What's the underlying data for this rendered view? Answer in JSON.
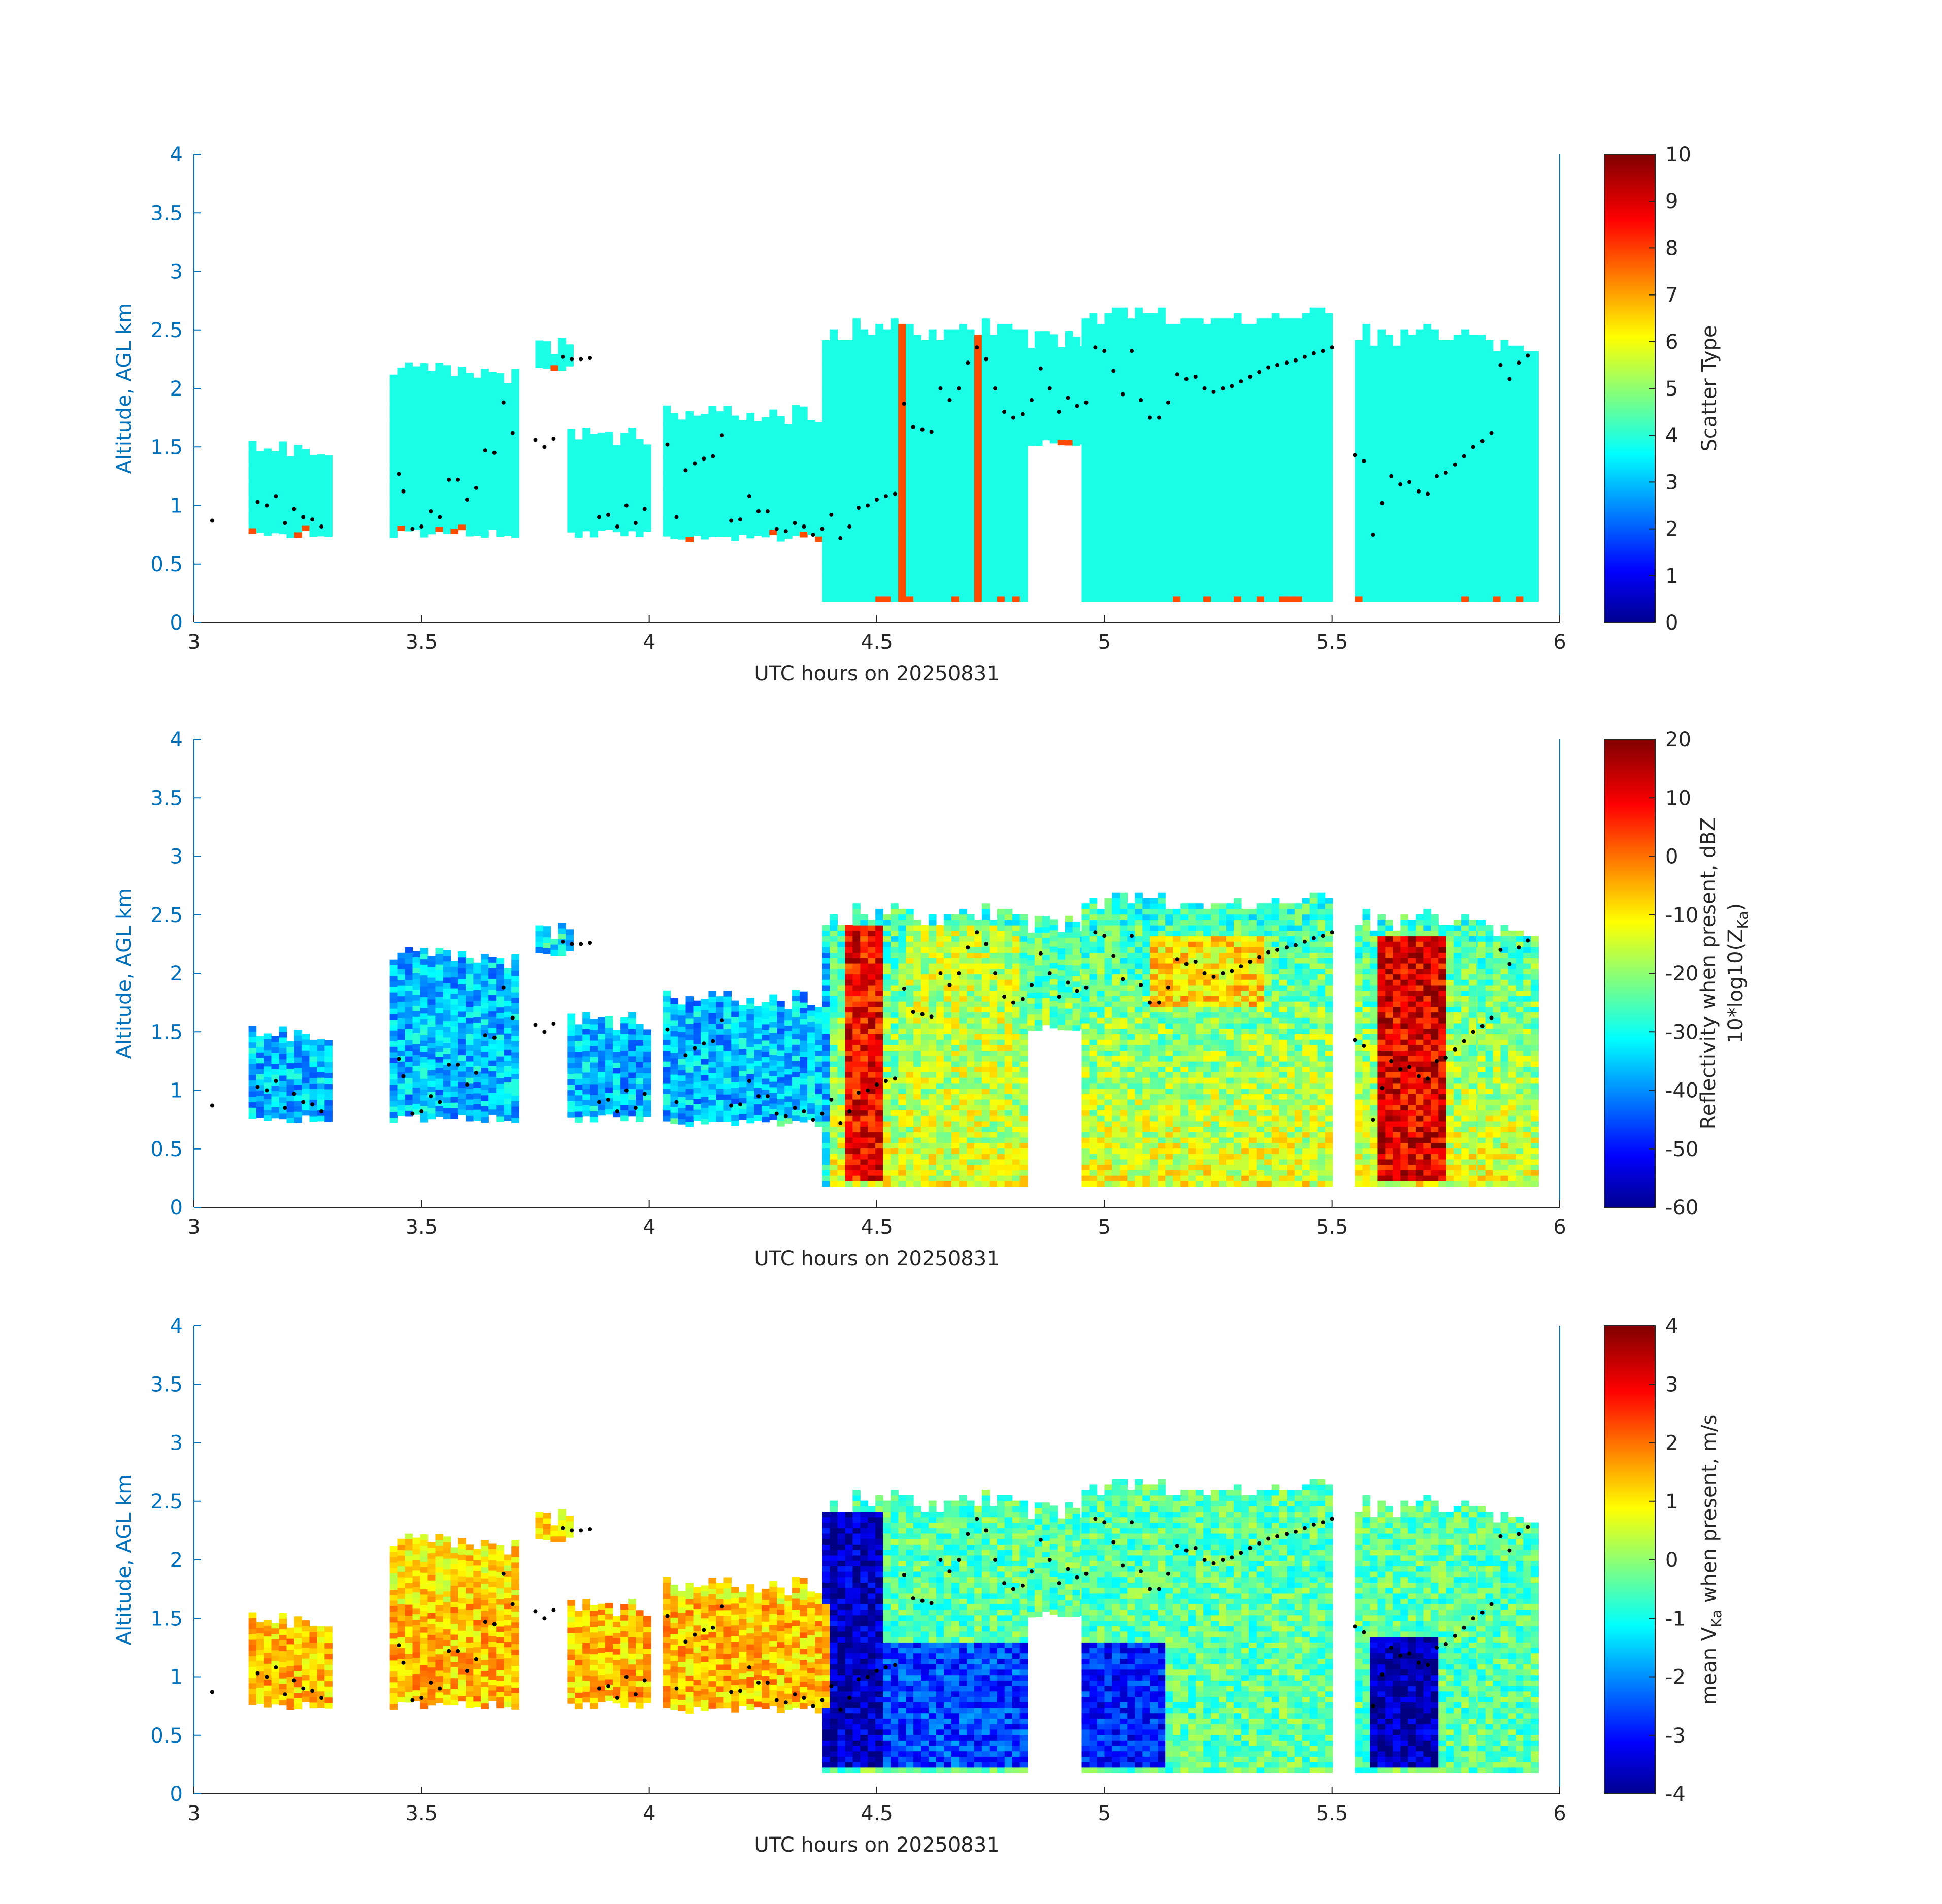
{
  "x_axis": {
    "label": "UTC hours on 20250831",
    "range": [
      3,
      6
    ],
    "ticks": [
      "3",
      "3.5",
      "4",
      "4.5",
      "5",
      "5.5",
      "6"
    ]
  },
  "y_axis": {
    "label": "Altitude, AGL km",
    "range": [
      0,
      4
    ],
    "ticks": [
      "0",
      "0.5",
      "1",
      "1.5",
      "2",
      "2.5",
      "3",
      "3.5",
      "4"
    ]
  },
  "colors": {
    "axis_blue": "#0072bd",
    "axis_black": "#262626",
    "marker": "#000000"
  },
  "colormap": "jet",
  "chart_data": [
    {
      "type": "heatmap",
      "variable": "scatter_type",
      "colorbar": {
        "label": "Scatter Type",
        "range": [
          0,
          10
        ],
        "ticks": [
          "0",
          "1",
          "2",
          "3",
          "4",
          "5",
          "6",
          "7",
          "8",
          "9",
          "10"
        ]
      },
      "dominant_value": 4,
      "secondary_value": 8,
      "cloud_segments": [
        {
          "x": [
            3.04,
            3.06
          ],
          "y": [
            0.85,
            1.0
          ]
        },
        {
          "x": [
            3.12,
            3.3
          ],
          "y": [
            0.72,
            1.55
          ]
        },
        {
          "x": [
            3.43,
            3.7
          ],
          "y": [
            0.72,
            2.22
          ]
        },
        {
          "x": [
            3.75,
            3.83
          ],
          "y": [
            2.15,
            2.45
          ]
        },
        {
          "x": [
            3.82,
            4.0
          ],
          "y": [
            0.72,
            1.65
          ]
        },
        {
          "x": [
            4.03,
            4.38
          ],
          "y": [
            0.68,
            1.85
          ]
        },
        {
          "x": [
            4.38,
            4.83
          ],
          "y": [
            0.18,
            2.58
          ]
        },
        {
          "x": [
            4.83,
            4.95
          ],
          "y": [
            1.5,
            2.5
          ]
        },
        {
          "x": [
            4.95,
            5.5
          ],
          "y": [
            0.18,
            2.68
          ]
        },
        {
          "x": [
            5.55,
            5.82
          ],
          "y": [
            0.18,
            2.52
          ]
        },
        {
          "x": [
            5.82,
            5.95
          ],
          "y": [
            0.18,
            2.45
          ]
        }
      ]
    },
    {
      "type": "heatmap",
      "variable": "reflectivity_dBZ",
      "colorbar": {
        "label_line1": "Reflectivity when present, dBZ",
        "label_line2_prefix": "10*log10(Z",
        "label_line2_sub": "Ka",
        "label_line2_suffix": ")",
        "range": [
          -60,
          20
        ],
        "ticks": [
          "-60",
          "-50",
          "-40",
          "-30",
          "-20",
          "-10",
          "0",
          "10",
          "20"
        ]
      },
      "features": [
        {
          "x": [
            4.42,
            4.5
          ],
          "y": [
            0.2,
            2.4
          ],
          "value": 10
        },
        {
          "x": [
            5.6,
            5.75
          ],
          "y": [
            0.2,
            2.3
          ],
          "value": 12
        },
        {
          "x": [
            4.55,
            4.8
          ],
          "y": [
            0.2,
            2.4
          ],
          "value": -15
        },
        {
          "x": [
            5.1,
            5.35
          ],
          "y": [
            1.7,
            2.3
          ],
          "value": -8
        },
        {
          "x": [
            3.12,
            4.38
          ],
          "y": [
            0.72,
            2.2
          ],
          "value": -35
        }
      ]
    },
    {
      "type": "heatmap",
      "variable": "mean_velocity_m_s",
      "colorbar": {
        "label_prefix": "mean V",
        "label_sub": "Ka",
        "label_suffix": " when present, m/s",
        "range": [
          -4,
          4
        ],
        "ticks": [
          "-4",
          "-3",
          "-2",
          "-1",
          "0",
          "1",
          "2",
          "3",
          "4"
        ]
      },
      "features": [
        {
          "x": [
            4.38,
            4.5
          ],
          "y": [
            0.2,
            2.4
          ],
          "value": -3.5
        },
        {
          "x": [
            4.5,
            4.83
          ],
          "y": [
            0.2,
            1.25
          ],
          "value": -2.5
        },
        {
          "x": [
            4.95,
            5.12
          ],
          "y": [
            0.2,
            1.25
          ],
          "value": -2.8
        },
        {
          "x": [
            5.58,
            5.72
          ],
          "y": [
            0.2,
            1.3
          ],
          "value": -3.6
        },
        {
          "x": [
            3.12,
            4.38
          ],
          "y": [
            0.72,
            1.6
          ],
          "value": 1.5
        }
      ]
    }
  ],
  "cloud_base_markers": {
    "x": [
      3.04,
      3.14,
      3.16,
      3.18,
      3.2,
      3.22,
      3.24,
      3.26,
      3.28,
      3.45,
      3.46,
      3.48,
      3.5,
      3.52,
      3.54,
      3.56,
      3.58,
      3.6,
      3.62,
      3.64,
      3.66,
      3.68,
      3.7,
      3.75,
      3.77,
      3.79,
      3.81,
      3.83,
      3.85,
      3.87,
      3.89,
      3.91,
      3.93,
      3.95,
      3.97,
      3.99,
      4.04,
      4.06,
      4.08,
      4.1,
      4.12,
      4.14,
      4.16,
      4.18,
      4.2,
      4.22,
      4.24,
      4.26,
      4.28,
      4.3,
      4.32,
      4.34,
      4.36,
      4.38,
      4.4,
      4.42,
      4.44,
      4.46,
      4.48,
      4.5,
      4.52,
      4.54,
      4.56,
      4.58,
      4.6,
      4.62,
      4.64,
      4.66,
      4.68,
      4.7,
      4.72,
      4.74,
      4.76,
      4.78,
      4.8,
      4.82,
      4.84,
      4.86,
      4.88,
      4.9,
      4.92,
      4.94,
      4.96,
      4.98,
      5.0,
      5.02,
      5.04,
      5.06,
      5.08,
      5.1,
      5.12,
      5.14,
      5.16,
      5.18,
      5.2,
      5.22,
      5.24,
      5.26,
      5.28,
      5.3,
      5.32,
      5.34,
      5.36,
      5.38,
      5.4,
      5.42,
      5.44,
      5.46,
      5.48,
      5.5,
      5.55,
      5.57,
      5.59,
      5.61,
      5.63,
      5.65,
      5.67,
      5.69,
      5.71,
      5.73,
      5.75,
      5.77,
      5.79,
      5.81,
      5.83,
      5.85,
      5.87,
      5.89,
      5.91,
      5.93
    ],
    "y": [
      0.87,
      1.03,
      1.0,
      1.08,
      0.85,
      0.97,
      0.9,
      0.88,
      0.82,
      1.27,
      1.12,
      0.8,
      0.82,
      0.95,
      0.9,
      1.22,
      1.22,
      1.05,
      1.15,
      1.47,
      1.45,
      1.88,
      1.62,
      1.56,
      1.5,
      1.57,
      2.27,
      2.25,
      2.25,
      2.26,
      0.9,
      0.92,
      0.82,
      1.0,
      0.85,
      0.97,
      1.52,
      0.9,
      1.3,
      1.36,
      1.4,
      1.42,
      1.6,
      0.87,
      0.88,
      1.08,
      0.95,
      0.95,
      0.8,
      0.78,
      0.85,
      0.82,
      0.75,
      0.8,
      0.92,
      0.72,
      0.82,
      0.98,
      1.0,
      1.05,
      1.08,
      1.1,
      1.87,
      1.67,
      1.65,
      1.63,
      2.0,
      1.9,
      2.0,
      2.22,
      2.35,
      2.25,
      2.0,
      1.8,
      1.75,
      1.78,
      1.9,
      2.17,
      2.0,
      1.8,
      1.92,
      1.85,
      1.88,
      2.35,
      2.32,
      2.15,
      1.95,
      2.32,
      1.9,
      1.75,
      1.75,
      1.88,
      2.12,
      2.08,
      2.1,
      2.0,
      1.97,
      2.0,
      2.02,
      2.06,
      2.1,
      2.14,
      2.18,
      2.2,
      2.22,
      2.24,
      2.27,
      2.3,
      2.32,
      2.35,
      1.43,
      1.38,
      0.75,
      1.02,
      1.25,
      1.18,
      1.2,
      1.12,
      1.1,
      1.25,
      1.28,
      1.35,
      1.42,
      1.5,
      1.55,
      1.62,
      2.2,
      2.08,
      2.22,
      2.28
    ]
  }
}
